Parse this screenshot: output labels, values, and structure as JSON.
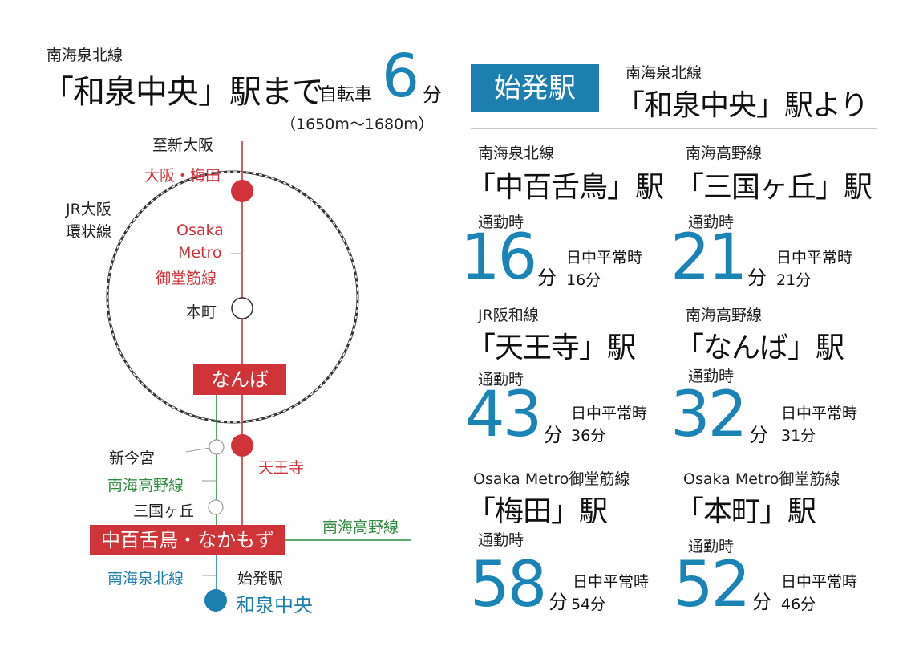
{
  "colors": {
    "accent_blue": "#1b84b6",
    "badge_blue": "#1d7fb0",
    "red_line": "#d0343a",
    "green_line": "#2e8a3c"
  },
  "header": {
    "line_name": "南海泉北線",
    "title": "「和泉中央」駅まで",
    "bike_label": "自転車",
    "minutes": "6",
    "unit": "分",
    "distance": "（1650m〜1680m）"
  },
  "right_header": {
    "badge": "始発駅",
    "line_name": "南海泉北線",
    "title": "「和泉中央」駅より"
  },
  "routes": [
    {
      "line": "南海泉北線",
      "station": "「中百舌鳥」駅",
      "commute_label": "通勤時",
      "commute_min": "16",
      "unit": "分",
      "daytime_label": "日中平常時",
      "daytime_value": "16分"
    },
    {
      "line": "南海高野線",
      "station": "「三国ヶ丘」駅",
      "commute_label": "通勤時",
      "commute_min": "21",
      "unit": "分",
      "daytime_label": "日中平常時",
      "daytime_value": "21分"
    },
    {
      "line": "JR阪和線",
      "station": "「天王寺」駅",
      "commute_label": "通勤時",
      "commute_min": "43",
      "unit": "分",
      "daytime_label": "日中平常時",
      "daytime_value": "36分"
    },
    {
      "line": "南海高野線",
      "station": "「なんば」駅",
      "commute_label": "通勤時",
      "commute_min": "32",
      "unit": "分",
      "daytime_label": "日中平常時",
      "daytime_value": "31分"
    },
    {
      "line": "Osaka Metro御堂筋線",
      "station": "「梅田」駅",
      "commute_label": "通勤時",
      "commute_min": "58",
      "unit": "分",
      "daytime_label": "日中平常時",
      "daytime_value": "54分"
    },
    {
      "line": "Osaka Metro御堂筋線",
      "station": "「本町」駅",
      "commute_label": "通勤時",
      "commute_min": "52",
      "unit": "分",
      "daytime_label": "日中平常時",
      "daytime_value": "46分"
    }
  ],
  "map": {
    "to_shin_osaka": "至新大阪",
    "osaka_umeda": "大阪・梅田",
    "jr_loop_line1": "JR大阪",
    "jr_loop_line2": "環状線",
    "metro_line1": "Osaka",
    "metro_line2": "Metro",
    "metro_line3": "御堂筋線",
    "honmachi": "本町",
    "namba": "なんば",
    "shin_imamiya": "新今宮",
    "tennoji": "天王寺",
    "nankai_koya": "南海高野線",
    "mikunigaoka": "三国ヶ丘",
    "nakamozu": "中百舌鳥・なかもず",
    "nankai_koya_right": "南海高野線",
    "nankai_senboku": "南海泉北線",
    "origin_label": "始発駅",
    "izumi_chuo": "和泉中央"
  }
}
